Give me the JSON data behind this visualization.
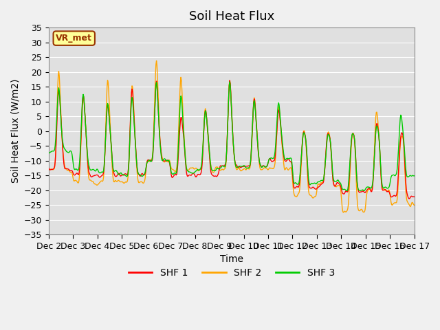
{
  "title": "Soil Heat Flux",
  "ylabel": "Soil Heat Flux (W/m2)",
  "xlabel": "Time",
  "ylim": [
    -35,
    35
  ],
  "yticks": [
    -35,
    -30,
    -25,
    -20,
    -15,
    -10,
    -5,
    0,
    5,
    10,
    15,
    20,
    25,
    30,
    35
  ],
  "colors": {
    "SHF 1": "#ff0000",
    "SHF 2": "#ffa500",
    "SHF 3": "#00cc00"
  },
  "line_width": 1.0,
  "bg_color": "#e0e0e0",
  "fig_color": "#f0f0f0",
  "vr_met_label": "VR_met",
  "vr_met_color": "#993300",
  "vr_met_bg": "#ffff99",
  "legend_entries": [
    "SHF 1",
    "SHF 2",
    "SHF 3"
  ],
  "xtick_labels": [
    "Dec 2",
    "Dec 3",
    "Dec 4",
    "Dec 5",
    "Dec 6",
    "Dec 7",
    "Dec 8",
    "Dec 9",
    "Dec 10",
    "Dec 11",
    "Dec 12",
    "Dec 13",
    "Dec 14",
    "Dec 15",
    "Dec 16",
    "Dec 17"
  ],
  "n_days": 15,
  "pts_per_day": 48,
  "title_fontsize": 13,
  "label_fontsize": 10,
  "tick_fontsize": 9,
  "day_peaks_shf2": [
    26,
    17,
    23,
    21,
    31,
    24,
    11,
    22,
    15,
    12,
    0,
    0,
    0,
    10,
    0
  ],
  "day_night_shf2": [
    -13,
    -17,
    -17,
    -17,
    -10,
    -13,
    -13,
    -13,
    -13,
    -13,
    -22,
    -18,
    -27,
    -20,
    -25
  ],
  "day_peaks_shf1": [
    19,
    17,
    13,
    20,
    22,
    7,
    10,
    22,
    15,
    10,
    0,
    0,
    0,
    4,
    0
  ],
  "day_night_shf1": [
    -13,
    -15,
    -15,
    -15,
    -10,
    -15,
    -15,
    -12,
    -12,
    -10,
    -19,
    -18,
    -21,
    -20,
    -22
  ],
  "day_peaks_shf3": [
    19,
    17,
    13,
    16,
    22,
    16,
    10,
    22,
    15,
    13,
    0,
    0,
    0,
    4,
    8
  ],
  "day_night_shf3": [
    -7,
    -13,
    -14,
    -15,
    -10,
    -14,
    -13,
    -12,
    -12,
    -9,
    -18,
    -17,
    -20,
    -19,
    -15
  ]
}
